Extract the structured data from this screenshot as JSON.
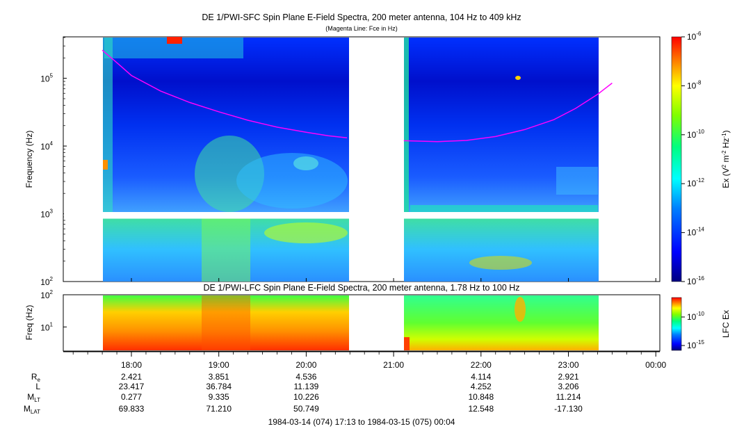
{
  "chart_data": [
    {
      "type": "heatmap",
      "title": "DE 1/PWI-SFC  Spin Plane E-Field Spectra, 200 meter antenna, 104 Hz to 409 kHz",
      "subtitle": "(Magenta Line: Fce in Hz)",
      "ylabel": "Frequency (Hz)",
      "y_scale": "log",
      "ylim": [
        100,
        409000
      ],
      "y_ticks": [
        {
          "value": 100,
          "base": "10",
          "exp": "2"
        },
        {
          "value": 1000,
          "base": "10",
          "exp": "3"
        },
        {
          "value": 10000,
          "base": "10",
          "exp": "4"
        },
        {
          "value": 100000,
          "base": "10",
          "exp": "5"
        }
      ],
      "colorbar": {
        "label_main": "Ex (V",
        "label_sup1": "2",
        "label_mid": " m",
        "label_sup2": "-2",
        "label_mid2": " Hz",
        "label_sup3": "-1",
        "label_end": ")",
        "scale": "log",
        "range": [
          1e-16,
          1e-06
        ],
        "ticks": [
          {
            "value": 1e-06,
            "base": "10",
            "exp": "-6"
          },
          {
            "value": 1e-08,
            "base": "10",
            "exp": "-8"
          },
          {
            "value": 1e-10,
            "base": "10",
            "exp": "-10"
          },
          {
            "value": 1e-12,
            "base": "10",
            "exp": "-12"
          },
          {
            "value": 1e-14,
            "base": "10",
            "exp": "-14"
          },
          {
            "value": 1e-16,
            "base": "10",
            "exp": "-16"
          }
        ]
      },
      "data_segments": [
        {
          "start": "17:40",
          "end": "20:30"
        },
        {
          "start": "21:07",
          "end": "23:33"
        }
      ],
      "gap": {
        "start": "20:30",
        "end": "21:07"
      },
      "series": [
        {
          "name": "Fce",
          "color": "#ff00ff",
          "points": [
            {
              "x": "17:40",
              "y": 260000
            },
            {
              "x": "17:50",
              "y": 170000
            },
            {
              "x": "18:00",
              "y": 110000
            },
            {
              "x": "18:20",
              "y": 65000
            },
            {
              "x": "18:40",
              "y": 44000
            },
            {
              "x": "19:00",
              "y": 32000
            },
            {
              "x": "19:20",
              "y": 24000
            },
            {
              "x": "19:40",
              "y": 19000
            },
            {
              "x": "20:00",
              "y": 16000
            },
            {
              "x": "20:15",
              "y": 14200
            },
            {
              "x": "20:28",
              "y": 13200
            }
          ]
        },
        {
          "name": "Fce",
          "color": "#ff00ff",
          "points": [
            {
              "x": "21:07",
              "y": 12000
            },
            {
              "x": "21:30",
              "y": 11600
            },
            {
              "x": "21:50",
              "y": 12100
            },
            {
              "x": "22:10",
              "y": 13800
            },
            {
              "x": "22:30",
              "y": 17500
            },
            {
              "x": "22:50",
              "y": 24500
            },
            {
              "x": "23:05",
              "y": 36000
            },
            {
              "x": "23:20",
              "y": 58000
            },
            {
              "x": "23:30",
              "y": 85000
            }
          ]
        }
      ]
    },
    {
      "type": "heatmap",
      "title": "DE 1/PWI-LFC  Spin Plane E-Field Spectra, 200 meter antenna, 1.78 Hz to 100 Hz",
      "ylabel": "Freq (Hz)",
      "y_scale": "log",
      "ylim": [
        1.78,
        100
      ],
      "y_ticks": [
        {
          "value": 10,
          "base": "10",
          "exp": "1"
        },
        {
          "value": 100,
          "base": "10",
          "exp": "2"
        }
      ],
      "colorbar": {
        "label": "LFC Ex",
        "scale": "log",
        "ticks": [
          {
            "value": 1e-10,
            "base": "10",
            "exp": "-10"
          },
          {
            "value": 1e-15,
            "base": "10",
            "exp": "-15"
          }
        ]
      }
    }
  ],
  "x_axis": {
    "tick_labels": [
      "18:00",
      "19:00",
      "20:00",
      "21:00",
      "22:00",
      "23:00",
      "00:00"
    ]
  },
  "ephemeris": {
    "rows": [
      {
        "label": "R",
        "sub": "e",
        "values": [
          "2.421",
          "3.851",
          "4.536",
          "",
          "4.114",
          "2.921",
          ""
        ]
      },
      {
        "label": "L",
        "sub": "",
        "values": [
          "23.417",
          "36.784",
          "11.139",
          "",
          "4.252",
          "3.206",
          ""
        ]
      },
      {
        "label": "M",
        "sub": "LT",
        "values": [
          "0.277",
          "9.335",
          "10.226",
          "",
          "10.848",
          "11.214",
          ""
        ]
      },
      {
        "label": "M",
        "sub": "LAT",
        "values": [
          "69.833",
          "71.210",
          "50.749",
          "",
          "12.548",
          "-17.130",
          ""
        ]
      }
    ]
  },
  "footer": {
    "time_range": "1984-03-14 (074) 17:13 to 1984-03-15 (075) 00:04"
  }
}
